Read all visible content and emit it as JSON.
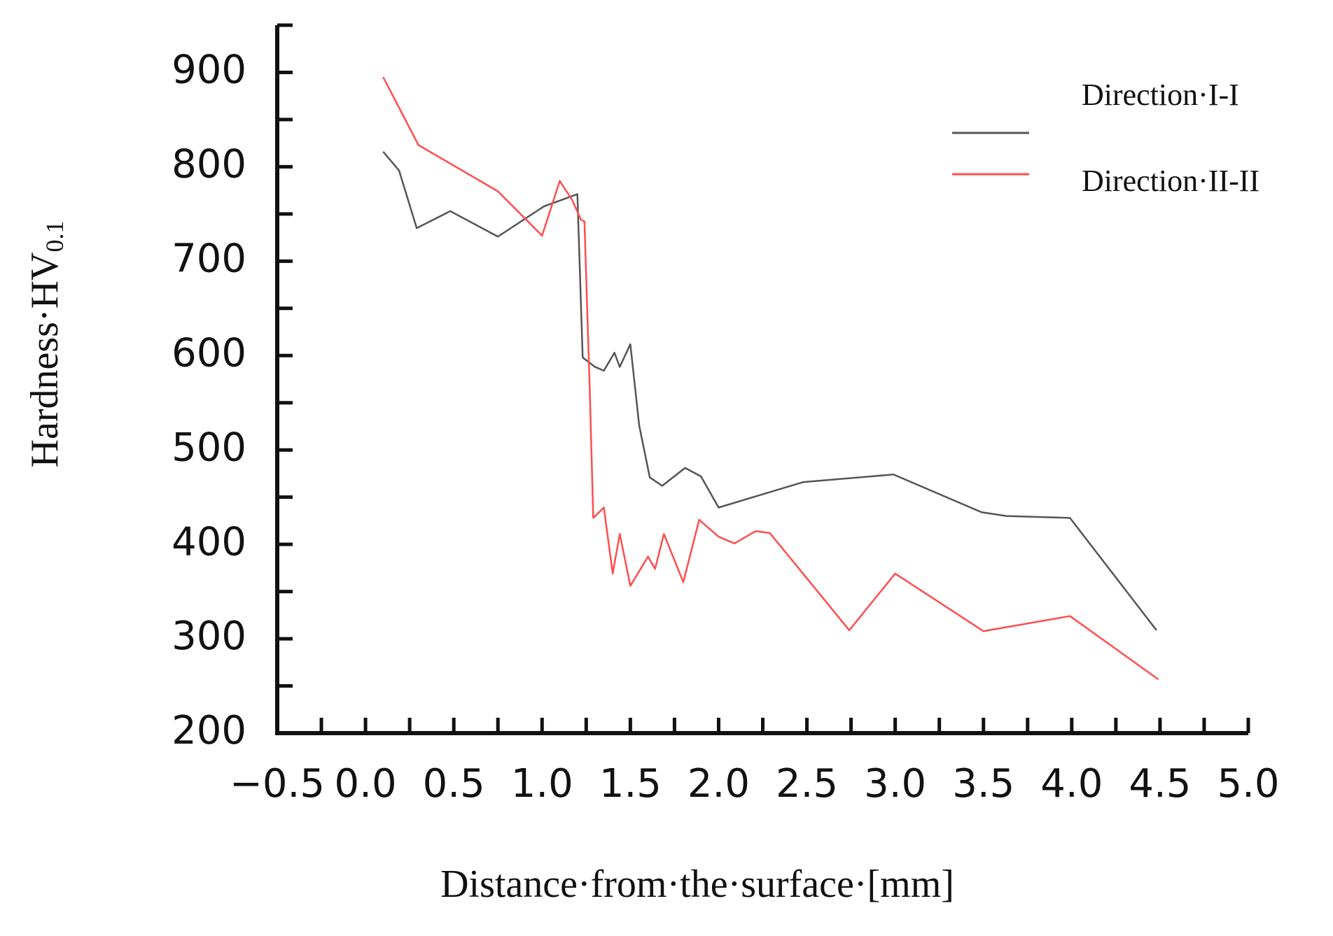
{
  "chart_data": {
    "type": "line",
    "xlabel": "Distance·from·the·surface·[mm]",
    "ylabel": "Hardness·HV",
    "ylabel_subscript": "0.1",
    "xlim": [
      -0.5,
      5.0
    ],
    "ylim": [
      200,
      950
    ],
    "xticks": [
      {
        "value": -0.5,
        "label": "−0.5"
      },
      {
        "value": 0,
        "label": "0.0"
      },
      0.5,
      {
        "value": 1,
        "label": "1.0"
      },
      1.5,
      {
        "value": 2,
        "label": "2.0"
      },
      2.5,
      {
        "value": 3,
        "label": "3.0"
      },
      3.5,
      {
        "value": 4,
        "label": "4.0"
      },
      4.5,
      {
        "value": 5,
        "label": "5.0"
      }
    ],
    "yticks": [
      200,
      300,
      400,
      500,
      600,
      700,
      800,
      900
    ],
    "series": [
      {
        "name": "Direction·I-I",
        "color": "#555555",
        "x": [
          0.1,
          0.19,
          0.29,
          0.48,
          0.75,
          1.01,
          1.2,
          1.23,
          1.3,
          1.35,
          1.41,
          1.44,
          1.5,
          1.55,
          1.61,
          1.68,
          1.81,
          1.9,
          2.0,
          2.48,
          2.99,
          3.49,
          3.63,
          3.99,
          4.48
        ],
        "values": [
          816,
          796,
          735,
          753,
          726,
          758,
          771,
          598,
          588,
          584,
          603,
          588,
          612,
          526,
          471,
          462,
          481,
          472,
          439,
          466,
          474,
          434,
          430,
          428,
          309
        ]
      },
      {
        "name": "Direction·II-II",
        "color": "#ff4d4d",
        "x": [
          0.1,
          0.3,
          0.75,
          1.0,
          1.1,
          1.17,
          1.22,
          1.24,
          1.27,
          1.29,
          1.35,
          1.4,
          1.44,
          1.5,
          1.6,
          1.64,
          1.69,
          1.8,
          1.89,
          2.0,
          2.09,
          2.21,
          2.29,
          2.74,
          3.0,
          3.5,
          3.99,
          4.49
        ],
        "values": [
          895,
          823,
          774,
          727,
          785,
          765,
          744,
          742,
          564,
          428,
          439,
          369,
          411,
          356,
          387,
          374,
          411,
          360,
          426,
          408,
          401,
          414,
          412,
          309,
          369,
          308,
          324,
          257
        ]
      }
    ]
  }
}
